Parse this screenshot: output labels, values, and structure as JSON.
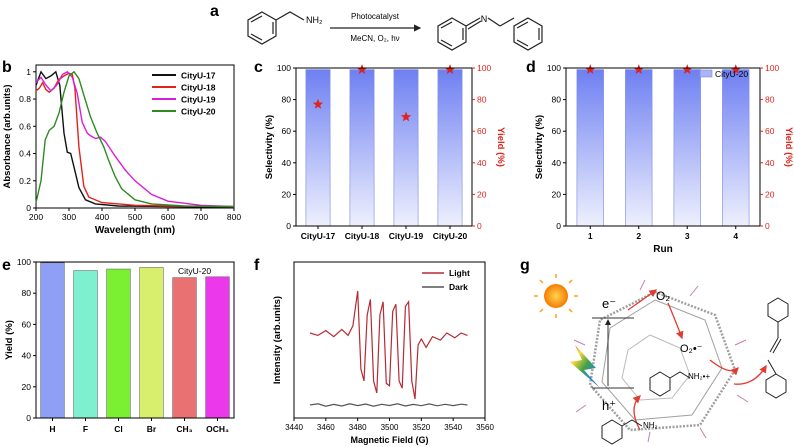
{
  "panel_letters": {
    "a": "a",
    "b": "b",
    "c": "c",
    "d": "d",
    "e": "e",
    "f": "f",
    "g": "g"
  },
  "reaction": {
    "above_arrow": "Photocatalyst",
    "below_arrow": "MeCN, O₂, hν",
    "reactant_label": "NH₂",
    "product_label": "N"
  },
  "mechanism": {
    "labels": {
      "electron": "e⁻",
      "hole": "h⁺",
      "oxygen": "O₂",
      "superoxide": "O₂•⁻",
      "amine": "NH₂",
      "amine_radical": "NH₂•+"
    },
    "colors": {
      "sun": "#f7a21b",
      "arrow": "#e03c31",
      "framework": "#9a9a9a"
    }
  },
  "chart_data": [
    {
      "panel": "b",
      "type": "line",
      "xlabel": "Wavelength (nm)",
      "ylabel": "Absorbance (arb.units)",
      "xlim": [
        200,
        800
      ],
      "ylim": [
        0,
        1.05
      ],
      "xticks": [
        200,
        300,
        400,
        500,
        600,
        700,
        800
      ],
      "yticks": [
        0.0,
        0.2,
        0.4,
        0.6,
        0.8,
        1.0
      ],
      "series": [
        {
          "name": "CityU-17",
          "color": "#111111",
          "points": [
            [
              200,
              0.9
            ],
            [
              215,
              1.0
            ],
            [
              230,
              0.95
            ],
            [
              245,
              0.97
            ],
            [
              260,
              1.0
            ],
            [
              272,
              0.9
            ],
            [
              285,
              0.55
            ],
            [
              295,
              0.41
            ],
            [
              305,
              0.4
            ],
            [
              315,
              0.3
            ],
            [
              330,
              0.15
            ],
            [
              350,
              0.06
            ],
            [
              380,
              0.03
            ],
            [
              450,
              0.015
            ],
            [
              600,
              0.01
            ],
            [
              800,
              0.005
            ]
          ]
        },
        {
          "name": "CityU-18",
          "color": "#e0231c",
          "points": [
            [
              200,
              0.86
            ],
            [
              210,
              0.88
            ],
            [
              220,
              0.92
            ],
            [
              230,
              0.87
            ],
            [
              240,
              0.85
            ],
            [
              255,
              0.88
            ],
            [
              268,
              0.94
            ],
            [
              285,
              0.97
            ],
            [
              300,
              0.99
            ],
            [
              310,
              0.98
            ],
            [
              318,
              0.88
            ],
            [
              330,
              0.45
            ],
            [
              345,
              0.16
            ],
            [
              360,
              0.08
            ],
            [
              400,
              0.04
            ],
            [
              500,
              0.02
            ],
            [
              600,
              0.015
            ],
            [
              800,
              0.01
            ]
          ]
        },
        {
          "name": "CityU-19",
          "color": "#d91ed9",
          "points": [
            [
              200,
              0.92
            ],
            [
              215,
              0.96
            ],
            [
              228,
              0.91
            ],
            [
              245,
              0.86
            ],
            [
              262,
              0.9
            ],
            [
              280,
              0.98
            ],
            [
              295,
              1.0
            ],
            [
              310,
              0.96
            ],
            [
              325,
              0.84
            ],
            [
              340,
              0.63
            ],
            [
              355,
              0.55
            ],
            [
              365,
              0.53
            ],
            [
              380,
              0.51
            ],
            [
              395,
              0.52
            ],
            [
              410,
              0.49
            ],
            [
              440,
              0.38
            ],
            [
              470,
              0.28
            ],
            [
              500,
              0.2
            ],
            [
              550,
              0.1
            ],
            [
              600,
              0.05
            ],
            [
              700,
              0.02
            ],
            [
              800,
              0.01
            ]
          ]
        },
        {
          "name": "CityU-20",
          "color": "#2e8b22",
          "points": [
            [
              200,
              0.04
            ],
            [
              215,
              0.2
            ],
            [
              228,
              0.5
            ],
            [
              240,
              0.57
            ],
            [
              255,
              0.6
            ],
            [
              270,
              0.7
            ],
            [
              285,
              0.85
            ],
            [
              300,
              0.97
            ],
            [
              315,
              1.0
            ],
            [
              330,
              0.95
            ],
            [
              345,
              0.83
            ],
            [
              365,
              0.67
            ],
            [
              385,
              0.55
            ],
            [
              405,
              0.45
            ],
            [
              420,
              0.35
            ],
            [
              440,
              0.23
            ],
            [
              460,
              0.14
            ],
            [
              500,
              0.06
            ],
            [
              550,
              0.03
            ],
            [
              650,
              0.015
            ],
            [
              800,
              0.01
            ]
          ]
        }
      ]
    },
    {
      "panel": "c",
      "type": "bar",
      "categories": [
        "CityU-17",
        "CityU-18",
        "CityU-19",
        "CityU-20"
      ],
      "selectivity": [
        99,
        99,
        99,
        99
      ],
      "yield": [
        77,
        99,
        69,
        99
      ],
      "ylabel": "Selectivity (%)",
      "y2label": "Yield (%)",
      "ylim": [
        0,
        100
      ],
      "yticks": [
        0,
        20,
        40,
        60,
        80,
        100
      ]
    },
    {
      "panel": "d",
      "type": "bar",
      "legend": "CityU-20",
      "categories": [
        "1",
        "2",
        "3",
        "4"
      ],
      "selectivity": [
        99,
        99,
        99,
        99
      ],
      "yield": [
        99,
        99,
        99,
        99
      ],
      "xlabel": "Run",
      "ylabel": "Selectivity (%)",
      "y2label": "Yield (%)",
      "ylim": [
        0,
        100
      ],
      "yticks": [
        0,
        20,
        40,
        60,
        80,
        100
      ]
    },
    {
      "panel": "e",
      "type": "bar",
      "annotation": "CityU-20",
      "categories": [
        "H",
        "F",
        "Cl",
        "Br",
        "CH₃",
        "OCH₃"
      ],
      "values": [
        99.5,
        94.5,
        95.5,
        96.5,
        90,
        90.5
      ],
      "colors": [
        "#8f9ff5",
        "#7ff0cf",
        "#7bef31",
        "#d7ef6d",
        "#e97171",
        "#ea38ea"
      ],
      "ylabel": "Yield (%)",
      "ylim": [
        0,
        100
      ],
      "yticks": [
        0,
        20,
        40,
        60,
        80,
        100
      ]
    },
    {
      "panel": "f",
      "type": "line",
      "xlabel": "Magnetic Field (G)",
      "ylabel": "Intensity (arb.units)",
      "xlim": [
        3440,
        3560
      ],
      "xticks": [
        3440,
        3460,
        3480,
        3500,
        3520,
        3540,
        3560
      ],
      "series": [
        {
          "name": "Light",
          "color": "#b52a35",
          "points": [
            [
              3450,
              0.6
            ],
            [
              3455,
              0.58
            ],
            [
              3460,
              0.62
            ],
            [
              3465,
              0.57
            ],
            [
              3470,
              0.63
            ],
            [
              3474,
              0.58
            ],
            [
              3477,
              0.66
            ],
            [
              3480,
              0.95
            ],
            [
              3482,
              0.3
            ],
            [
              3484,
              0.2
            ],
            [
              3486,
              0.75
            ],
            [
              3488,
              0.88
            ],
            [
              3490,
              0.2
            ],
            [
              3492,
              0.1
            ],
            [
              3494,
              0.75
            ],
            [
              3496,
              0.86
            ],
            [
              3498,
              0.18
            ],
            [
              3500,
              0.16
            ],
            [
              3502,
              0.78
            ],
            [
              3504,
              0.84
            ],
            [
              3506,
              0.2
            ],
            [
              3508,
              0.14
            ],
            [
              3510,
              0.82
            ],
            [
              3512,
              0.86
            ],
            [
              3514,
              0.2
            ],
            [
              3516,
              0.05
            ],
            [
              3518,
              0.5
            ],
            [
              3520,
              0.55
            ],
            [
              3523,
              0.48
            ],
            [
              3527,
              0.57
            ],
            [
              3532,
              0.54
            ],
            [
              3536,
              0.6
            ],
            [
              3541,
              0.56
            ],
            [
              3545,
              0.6
            ],
            [
              3549,
              0.58
            ]
          ]
        },
        {
          "name": "Dark",
          "color": "#555555",
          "points": [
            [
              3450,
              0.0
            ],
            [
              3455,
              0.01
            ],
            [
              3460,
              -0.01
            ],
            [
              3465,
              0.005
            ],
            [
              3470,
              -0.008
            ],
            [
              3475,
              0.01
            ],
            [
              3480,
              -0.005
            ],
            [
              3485,
              0.008
            ],
            [
              3490,
              -0.01
            ],
            [
              3495,
              0.006
            ],
            [
              3500,
              -0.004
            ],
            [
              3505,
              0.01
            ],
            [
              3510,
              -0.008
            ],
            [
              3515,
              0.005
            ],
            [
              3520,
              -0.006
            ],
            [
              3525,
              0.009
            ],
            [
              3530,
              -0.007
            ],
            [
              3535,
              0.006
            ],
            [
              3540,
              -0.005
            ],
            [
              3545,
              0.007
            ],
            [
              3549,
              0.0
            ]
          ]
        }
      ]
    }
  ]
}
